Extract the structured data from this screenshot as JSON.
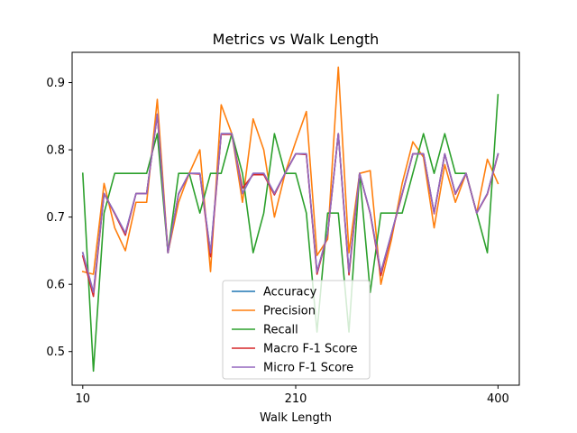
{
  "chart_data": {
    "type": "line",
    "title": "Metrics vs Walk Length",
    "xlabel": "Walk Length",
    "ylabel": "",
    "xlim": [
      0,
      420
    ],
    "ylim": [
      0.45,
      0.945
    ],
    "xticks": [
      10,
      210,
      400
    ],
    "xtick_labels": [
      "10",
      "210",
      "400"
    ],
    "yticks": [
      0.5,
      0.6,
      0.7,
      0.8,
      0.9
    ],
    "ytick_labels": [
      "0.5",
      "0.6",
      "0.7",
      "0.8",
      "0.9"
    ],
    "grid": false,
    "legend_position": "lower-center",
    "x": [
      10,
      20,
      30,
      40,
      50,
      60,
      70,
      80,
      90,
      100,
      110,
      120,
      130,
      140,
      150,
      160,
      170,
      180,
      190,
      200,
      210,
      220,
      230,
      240,
      250,
      260,
      270,
      280,
      290,
      300,
      310,
      320,
      330,
      340,
      350,
      360,
      370,
      380,
      390,
      400
    ],
    "series": [
      {
        "name": "Accuracy",
        "color": "#1f77b4",
        "values": [
          0.647,
          0.588,
          0.735,
          0.706,
          0.676,
          0.735,
          0.735,
          0.853,
          0.647,
          0.735,
          0.765,
          0.765,
          0.647,
          0.824,
          0.824,
          0.735,
          0.765,
          0.765,
          0.735,
          0.765,
          0.794,
          0.794,
          0.618,
          0.676,
          0.824,
          0.618,
          0.765,
          0.706,
          0.618,
          0.676,
          0.735,
          0.794,
          0.794,
          0.706,
          0.794,
          0.735,
          0.765,
          0.706,
          0.735,
          0.794
        ]
      },
      {
        "name": "Precision",
        "color": "#ff7f0e",
        "values": [
          0.619,
          0.615,
          0.75,
          0.684,
          0.65,
          0.722,
          0.722,
          0.875,
          0.647,
          0.722,
          0.765,
          0.8,
          0.619,
          0.867,
          0.824,
          0.722,
          0.846,
          0.8,
          0.7,
          0.765,
          0.812,
          0.857,
          0.643,
          0.667,
          0.923,
          0.647,
          0.765,
          0.769,
          0.6,
          0.667,
          0.75,
          0.812,
          0.789,
          0.684,
          0.778,
          0.722,
          0.765,
          0.706,
          0.786,
          0.75
        ]
      },
      {
        "name": "Recall",
        "color": "#2ca02c",
        "values": [
          0.765,
          0.471,
          0.706,
          0.765,
          0.765,
          0.765,
          0.765,
          0.824,
          0.647,
          0.765,
          0.765,
          0.706,
          0.765,
          0.765,
          0.824,
          0.765,
          0.647,
          0.706,
          0.824,
          0.765,
          0.765,
          0.706,
          0.529,
          0.706,
          0.706,
          0.529,
          0.765,
          0.588,
          0.706,
          0.706,
          0.706,
          0.765,
          0.824,
          0.765,
          0.824,
          0.765,
          0.765,
          0.706,
          0.647,
          0.882
        ]
      },
      {
        "name": "Macro F-1 Score",
        "color": "#d62728",
        "values": [
          0.642,
          0.582,
          0.735,
          0.705,
          0.673,
          0.735,
          0.735,
          0.852,
          0.647,
          0.734,
          0.765,
          0.764,
          0.641,
          0.823,
          0.823,
          0.743,
          0.763,
          0.763,
          0.733,
          0.765,
          0.794,
          0.793,
          0.615,
          0.675,
          0.824,
          0.614,
          0.765,
          0.705,
          0.613,
          0.675,
          0.734,
          0.794,
          0.794,
          0.705,
          0.794,
          0.734,
          0.765,
          0.706,
          0.734,
          0.793
        ]
      },
      {
        "name": "Micro F-1 Score",
        "color": "#9467bd",
        "values": [
          0.647,
          0.588,
          0.735,
          0.706,
          0.676,
          0.735,
          0.735,
          0.853,
          0.647,
          0.735,
          0.765,
          0.765,
          0.647,
          0.824,
          0.824,
          0.735,
          0.765,
          0.765,
          0.735,
          0.765,
          0.794,
          0.794,
          0.618,
          0.676,
          0.824,
          0.618,
          0.765,
          0.706,
          0.618,
          0.676,
          0.735,
          0.794,
          0.794,
          0.706,
          0.794,
          0.735,
          0.765,
          0.706,
          0.735,
          0.794
        ]
      }
    ]
  }
}
